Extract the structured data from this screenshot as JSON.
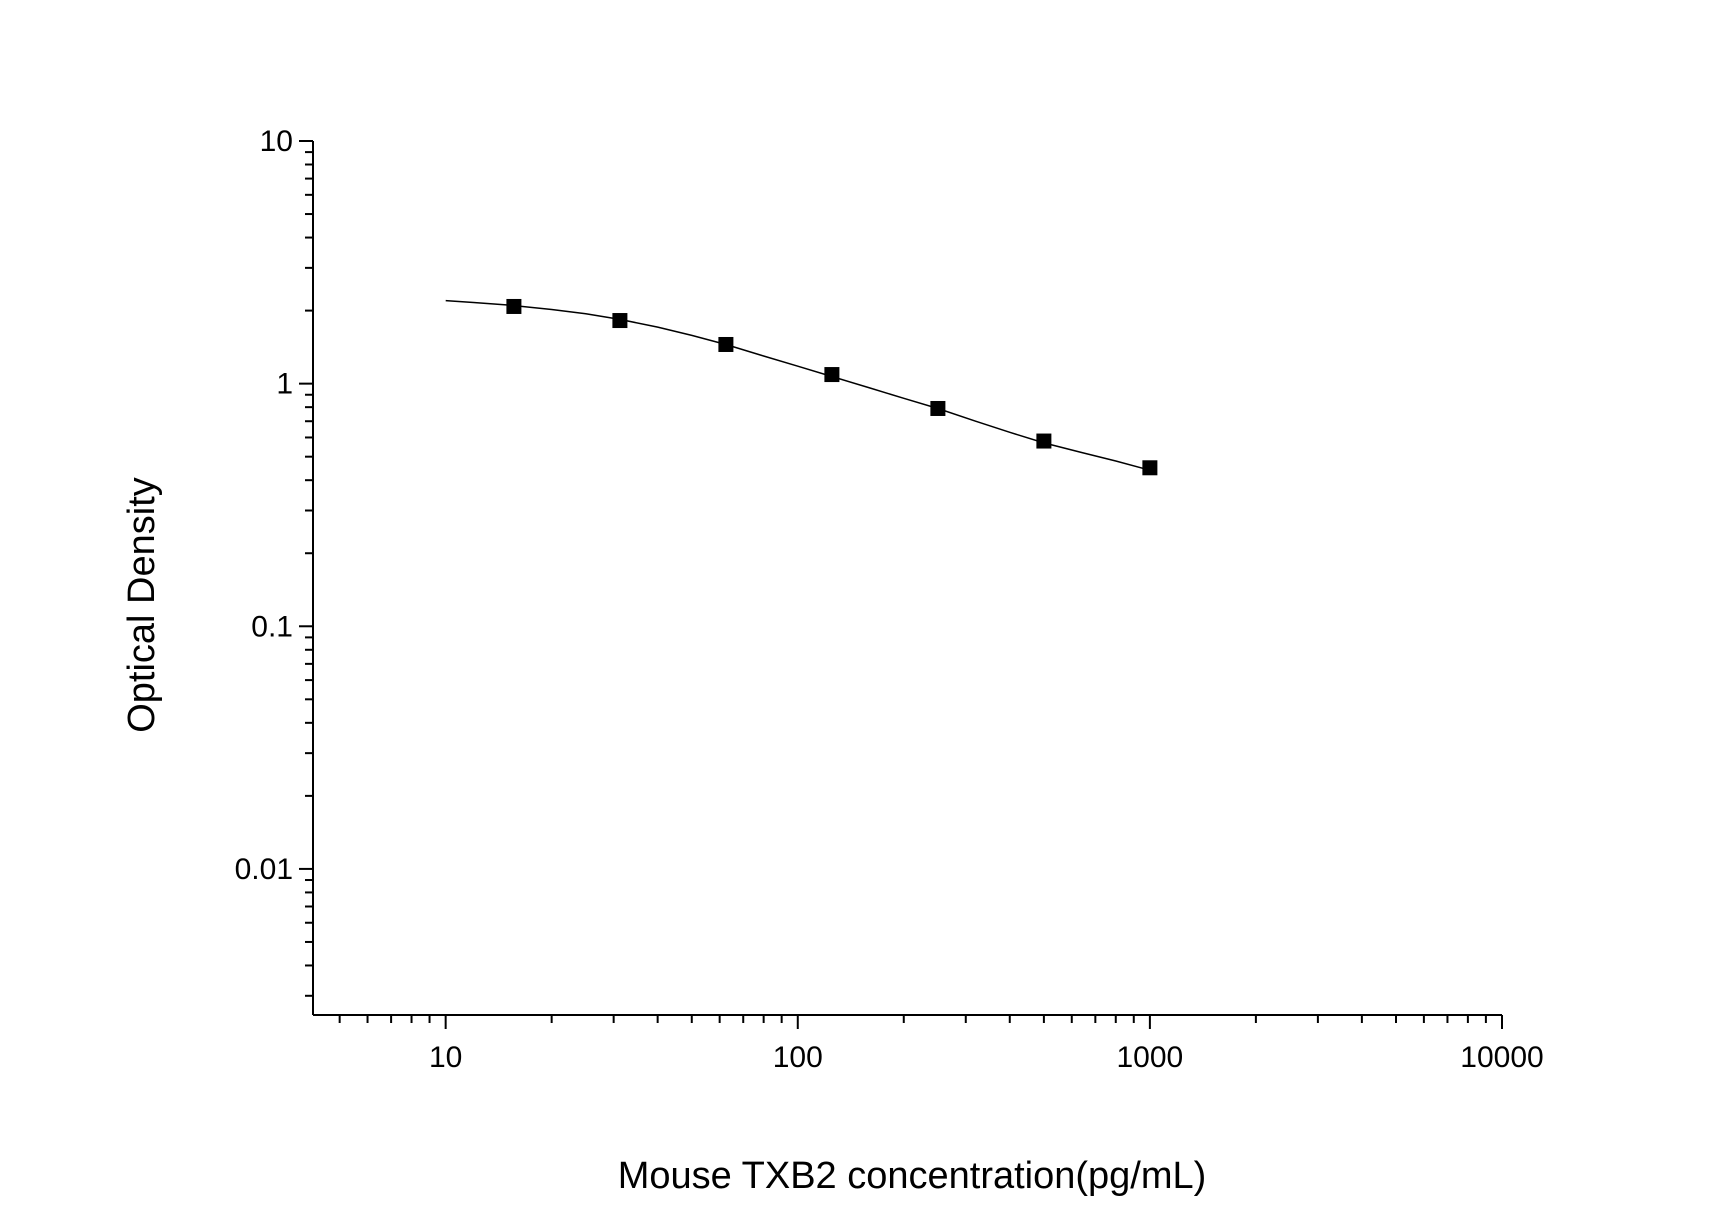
{
  "chart_data": {
    "type": "scatter",
    "title": "",
    "xlabel": "Mouse TXB2 concentration(pg/mL)",
    "ylabel": "Optical Density",
    "x_scale": "log",
    "y_scale": "log",
    "xlim": [
      4.2,
      10000
    ],
    "ylim": [
      0.0025,
      10
    ],
    "x_ticks": [
      10,
      100,
      1000,
      10000
    ],
    "x_tick_labels": [
      "10",
      "100",
      "1000",
      "10000"
    ],
    "y_ticks": [
      0.01,
      0.1,
      1,
      10
    ],
    "y_tick_labels": [
      "0.01",
      "0.1",
      "1",
      "10"
    ],
    "grid": false,
    "legend": "none",
    "series": [
      {
        "marker": "square",
        "color": "#000000",
        "x": [
          15.625,
          31.25,
          62.5,
          125,
          250,
          500,
          1000
        ],
        "y": [
          2.08,
          1.82,
          1.45,
          1.09,
          0.79,
          0.58,
          0.45
        ]
      }
    ],
    "fit_curve": {
      "color": "#000000",
      "x": [
        10,
        12,
        15,
        20,
        25,
        31.25,
        40,
        50,
        62.5,
        80,
        100,
        125,
        160,
        200,
        250,
        320,
        400,
        500,
        640,
        800,
        1000
      ],
      "y": [
        2.2,
        2.16,
        2.11,
        2.02,
        1.94,
        1.84,
        1.71,
        1.58,
        1.45,
        1.3,
        1.18,
        1.07,
        0.96,
        0.87,
        0.79,
        0.7,
        0.63,
        0.57,
        0.52,
        0.48,
        0.44
      ]
    }
  }
}
